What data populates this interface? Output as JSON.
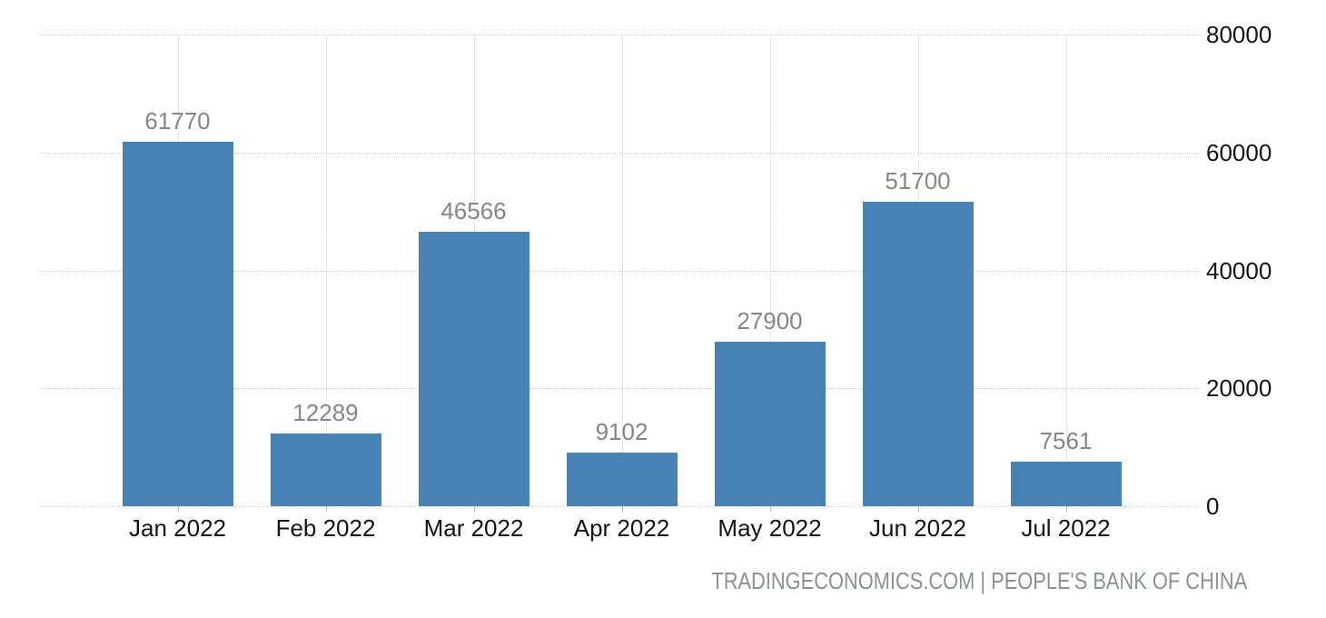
{
  "chart_data": {
    "type": "bar",
    "title": "",
    "categories": [
      "Jan 2022",
      "Feb 2022",
      "Mar 2022",
      "Apr 2022",
      "May 2022",
      "Jun 2022",
      "Jul 2022"
    ],
    "values": [
      61770,
      12289,
      46566,
      9102,
      27900,
      51700,
      7561
    ],
    "xlabel": "",
    "ylabel": "",
    "ylim": [
      0,
      80000
    ],
    "yticks": [
      0,
      20000,
      40000,
      60000,
      80000
    ],
    "yaxis_side": "right",
    "grid": "dotted",
    "legend": "none",
    "bar_color": "#4682b4",
    "value_label_color": "#848689",
    "axis_label_color": "#141414"
  },
  "footer": {
    "text": "TRADINGECONOMICS.COM | PEOPLE'S BANK OF CHINA",
    "color": "#8b9196"
  }
}
